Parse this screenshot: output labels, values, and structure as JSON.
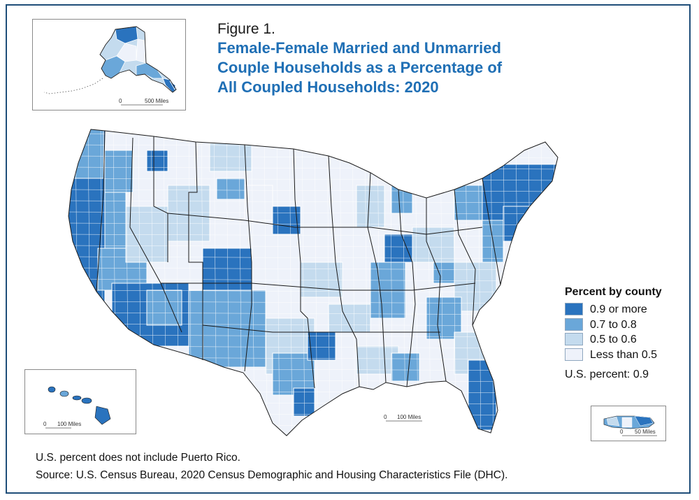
{
  "figure_label": "Figure 1.",
  "title_lines": [
    "Female-Female Married and Unmarried",
    "Couple Households as a Percentage of",
    "All Coupled Households: 2020"
  ],
  "legend": {
    "title": "Percent by county",
    "items": [
      {
        "label": "0.9 or more",
        "color": "#2a73be"
      },
      {
        "label": "0.7 to 0.8",
        "color": "#6aa7d9"
      },
      {
        "label": "0.5 to 0.6",
        "color": "#c4dbee"
      },
      {
        "label": "Less than 0.5",
        "color": "#eef2fa"
      }
    ]
  },
  "us_percent": "U.S. percent: 0.9",
  "scales": {
    "alaska": {
      "zero": "0",
      "label": "500 Miles"
    },
    "hawaii": {
      "zero": "0",
      "label": "100 Miles"
    },
    "conus": {
      "zero": "0",
      "label": "100 Miles"
    },
    "puerto_rico": {
      "zero": "0",
      "label": "50 Miles"
    }
  },
  "notes": {
    "puerto_rico": "U.S. percent does not include Puerto Rico.",
    "source": "Source: U.S. Census Bureau, 2020 Census Demographic and Housing Characteristics File (DHC)."
  },
  "colors": {
    "border": "#1f4e79",
    "title": "#1f6fb5",
    "state_outline": "#1a1a1a",
    "county_outline": "#ffffff"
  }
}
